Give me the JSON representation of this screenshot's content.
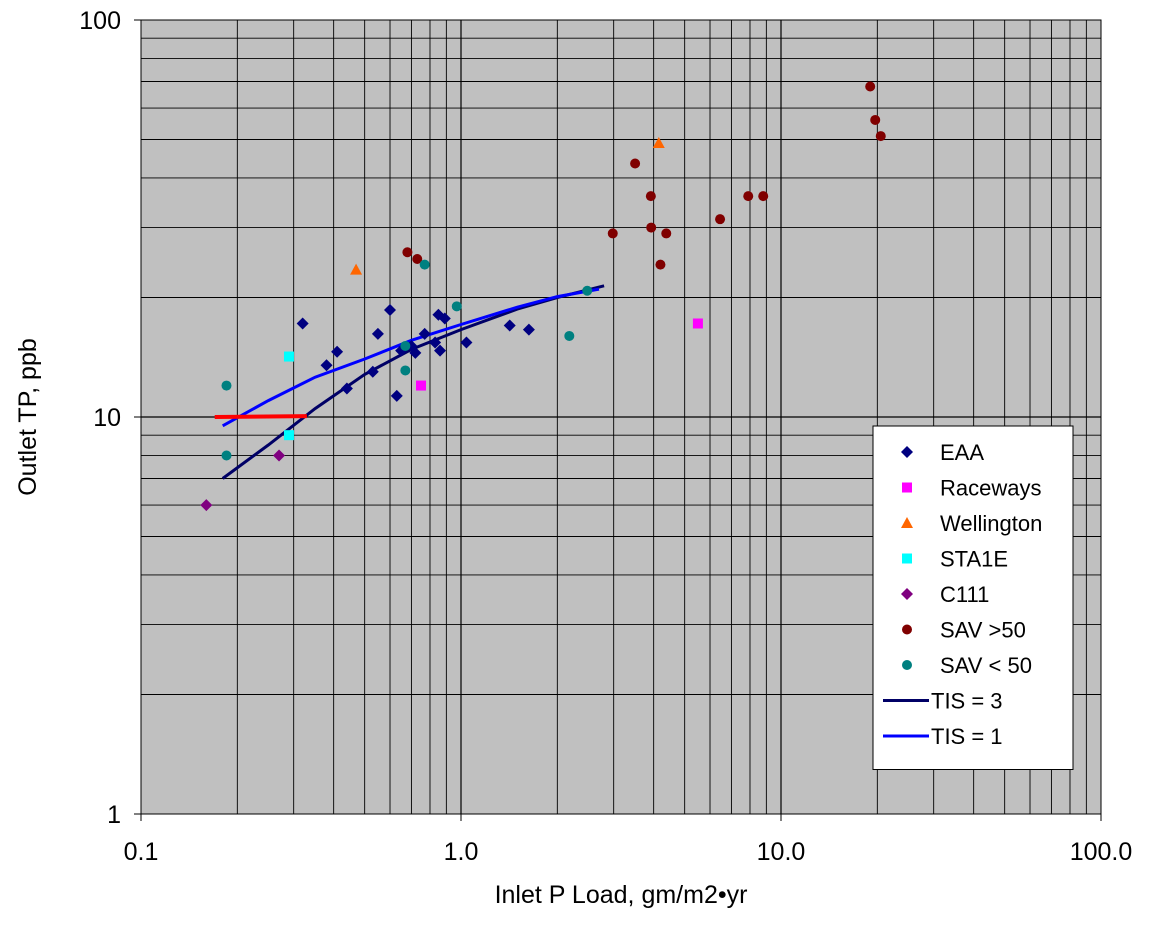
{
  "chart_data": {
    "type": "scatter",
    "title": "",
    "xlabel": "Inlet P Load, gm/m2•yr",
    "ylabel": "Outlet TP, ppb",
    "xscale": "log",
    "yscale": "log",
    "xlim": [
      0.1,
      100
    ],
    "ylim": [
      1,
      100
    ],
    "xticks": [
      {
        "value": 0.1,
        "label": "0.1"
      },
      {
        "value": 1,
        "label": "1.0"
      },
      {
        "value": 10,
        "label": "10.0"
      },
      {
        "value": 100,
        "label": "100.0"
      }
    ],
    "yticks": [
      {
        "value": 1,
        "label": "1"
      },
      {
        "value": 10,
        "label": "10"
      },
      {
        "value": 100,
        "label": "100"
      }
    ],
    "grid": true,
    "plot_background": "#c0c0c0",
    "legend_position": "bottom-right",
    "series": [
      {
        "name": "EAA",
        "kind": "points",
        "marker": "diamond",
        "color": "#000080",
        "points": [
          [
            0.32,
            17.2
          ],
          [
            0.38,
            13.5
          ],
          [
            0.41,
            14.6
          ],
          [
            0.44,
            11.8
          ],
          [
            0.53,
            13.0
          ],
          [
            0.55,
            16.2
          ],
          [
            0.6,
            18.6
          ],
          [
            0.63,
            11.3
          ],
          [
            0.65,
            14.7
          ],
          [
            0.7,
            15.1
          ],
          [
            0.72,
            14.5
          ],
          [
            0.77,
            16.2
          ],
          [
            0.83,
            15.4
          ],
          [
            0.85,
            18.1
          ],
          [
            0.86,
            14.7
          ],
          [
            0.89,
            17.7
          ],
          [
            1.04,
            15.4
          ],
          [
            1.42,
            17.0
          ],
          [
            1.63,
            16.6
          ]
        ]
      },
      {
        "name": "Raceways",
        "kind": "points",
        "marker": "square",
        "color": "#ff00ff",
        "points": [
          [
            0.75,
            12.0
          ],
          [
            5.5,
            17.2
          ]
        ]
      },
      {
        "name": "Wellington",
        "kind": "points",
        "marker": "triangle",
        "color": "#ff6600",
        "points": [
          [
            0.47,
            23.5
          ],
          [
            4.15,
            49.0
          ]
        ]
      },
      {
        "name": "STA1E",
        "kind": "points",
        "marker": "square",
        "color": "#00ffff",
        "points": [
          [
            0.29,
            14.2
          ],
          [
            0.29,
            9.0
          ]
        ]
      },
      {
        "name": "C111",
        "kind": "points",
        "marker": "diamond",
        "color": "#800080",
        "points": [
          [
            0.16,
            6.0
          ],
          [
            0.27,
            8.0
          ]
        ]
      },
      {
        "name": "SAV >50",
        "kind": "points",
        "marker": "circle",
        "color": "#800000",
        "points": [
          [
            0.68,
            26.0
          ],
          [
            0.73,
            25.0
          ],
          [
            2.98,
            29.0
          ],
          [
            3.5,
            43.5
          ],
          [
            3.92,
            36.0
          ],
          [
            3.93,
            30.0
          ],
          [
            4.2,
            24.2
          ],
          [
            4.38,
            29.0
          ],
          [
            6.45,
            31.5
          ],
          [
            7.9,
            36.0
          ],
          [
            8.8,
            36.0
          ],
          [
            19.0,
            68.0
          ],
          [
            19.7,
            56.0
          ],
          [
            20.5,
            51.0
          ]
        ]
      },
      {
        "name": "SAV < 50",
        "kind": "points",
        "marker": "circle",
        "color": "#008080",
        "points": [
          [
            0.185,
            12.0
          ],
          [
            0.185,
            8.0
          ],
          [
            0.67,
            15.1
          ],
          [
            0.67,
            13.1
          ],
          [
            0.77,
            24.2
          ],
          [
            0.97,
            19.0
          ],
          [
            2.18,
            16.0
          ],
          [
            2.48,
            20.8
          ]
        ]
      },
      {
        "name": "TIS = 3",
        "kind": "line",
        "color": "#000066",
        "points": [
          [
            0.18,
            7.0
          ],
          [
            0.25,
            8.5
          ],
          [
            0.35,
            10.5
          ],
          [
            0.5,
            12.8
          ],
          [
            0.7,
            14.8
          ],
          [
            1.0,
            16.6
          ],
          [
            1.5,
            18.7
          ],
          [
            2.0,
            20.0
          ],
          [
            2.8,
            21.4
          ]
        ]
      },
      {
        "name": "TIS = 1",
        "kind": "line",
        "color": "#0000ff",
        "points": [
          [
            0.18,
            9.5
          ],
          [
            0.25,
            11.0
          ],
          [
            0.35,
            12.6
          ],
          [
            0.5,
            14.0
          ],
          [
            0.7,
            15.6
          ],
          [
            1.0,
            17.1
          ],
          [
            1.5,
            18.9
          ],
          [
            2.0,
            20.1
          ],
          [
            2.7,
            21.0
          ]
        ]
      },
      {
        "name": "",
        "kind": "line",
        "color": "#ff0000",
        "in_legend": false,
        "points": [
          [
            0.17,
            10.0
          ],
          [
            0.33,
            10.05
          ]
        ]
      }
    ]
  }
}
